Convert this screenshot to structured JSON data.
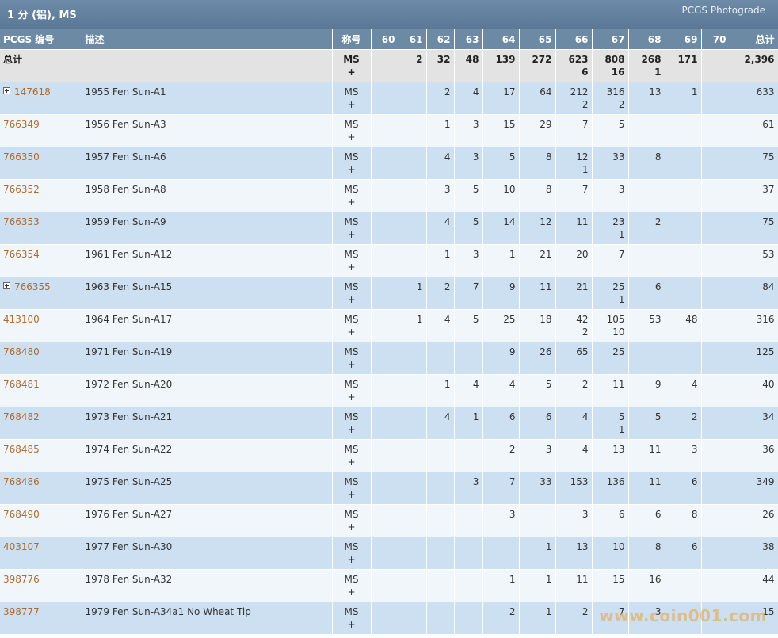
{
  "header": {
    "title": "1 分 (铝), MS",
    "brand": "PCGS Photograde"
  },
  "columns": [
    "PCGS 编号",
    "描述",
    "称号",
    "60",
    "61",
    "62",
    "63",
    "64",
    "65",
    "66",
    "67",
    "68",
    "69",
    "70",
    "总计"
  ],
  "total_row": {
    "label": "总计",
    "desc": "",
    "desig": "MS",
    "desig_sub": "+",
    "grades": [
      [
        "",
        ""
      ],
      [
        "2",
        ""
      ],
      [
        "32",
        ""
      ],
      [
        "48",
        ""
      ],
      [
        "139",
        ""
      ],
      [
        "272",
        ""
      ],
      [
        "623",
        "6"
      ],
      [
        "808",
        "16"
      ],
      [
        "268",
        "1"
      ],
      [
        "171",
        ""
      ],
      [
        "",
        ""
      ]
    ],
    "total": "2,396"
  },
  "rows": [
    {
      "id": "147618",
      "expand": true,
      "desc": "1955 Fen Sun-A1",
      "desig": "MS",
      "desig_sub": "+",
      "grades": [
        [
          "",
          ""
        ],
        [
          "",
          ""
        ],
        [
          "2",
          ""
        ],
        [
          "4",
          ""
        ],
        [
          "17",
          ""
        ],
        [
          "64",
          ""
        ],
        [
          "212",
          "2"
        ],
        [
          "316",
          "2"
        ],
        [
          "13",
          ""
        ],
        [
          "1",
          ""
        ],
        [
          "",
          ""
        ]
      ],
      "total": "633"
    },
    {
      "id": "766349",
      "expand": false,
      "desc": "1956 Fen Sun-A3",
      "desig": "MS",
      "desig_sub": "+",
      "grades": [
        [
          "",
          ""
        ],
        [
          "",
          ""
        ],
        [
          "1",
          ""
        ],
        [
          "3",
          ""
        ],
        [
          "15",
          ""
        ],
        [
          "29",
          ""
        ],
        [
          "7",
          ""
        ],
        [
          "5",
          ""
        ],
        [
          "",
          ""
        ],
        [
          "",
          ""
        ],
        [
          "",
          ""
        ]
      ],
      "total": "61"
    },
    {
      "id": "766350",
      "expand": false,
      "desc": "1957 Fen Sun-A6",
      "desig": "MS",
      "desig_sub": "+",
      "grades": [
        [
          "",
          ""
        ],
        [
          "",
          ""
        ],
        [
          "4",
          ""
        ],
        [
          "3",
          ""
        ],
        [
          "5",
          ""
        ],
        [
          "8",
          ""
        ],
        [
          "12",
          "1"
        ],
        [
          "33",
          ""
        ],
        [
          "8",
          ""
        ],
        [
          "",
          ""
        ],
        [
          "",
          ""
        ]
      ],
      "total": "75"
    },
    {
      "id": "766352",
      "expand": false,
      "desc": "1958 Fen Sun-A8",
      "desig": "MS",
      "desig_sub": "+",
      "grades": [
        [
          "",
          ""
        ],
        [
          "",
          ""
        ],
        [
          "3",
          ""
        ],
        [
          "5",
          ""
        ],
        [
          "10",
          ""
        ],
        [
          "8",
          ""
        ],
        [
          "7",
          ""
        ],
        [
          "3",
          ""
        ],
        [
          "",
          ""
        ],
        [
          "",
          ""
        ],
        [
          "",
          ""
        ]
      ],
      "total": "37"
    },
    {
      "id": "766353",
      "expand": false,
      "desc": "1959 Fen Sun-A9",
      "desig": "MS",
      "desig_sub": "+",
      "grades": [
        [
          "",
          ""
        ],
        [
          "",
          ""
        ],
        [
          "4",
          ""
        ],
        [
          "5",
          ""
        ],
        [
          "14",
          ""
        ],
        [
          "12",
          ""
        ],
        [
          "11",
          ""
        ],
        [
          "23",
          "1"
        ],
        [
          "2",
          ""
        ],
        [
          "",
          ""
        ],
        [
          "",
          ""
        ]
      ],
      "total": "75"
    },
    {
      "id": "766354",
      "expand": false,
      "desc": "1961 Fen Sun-A12",
      "desig": "MS",
      "desig_sub": "+",
      "grades": [
        [
          "",
          ""
        ],
        [
          "",
          ""
        ],
        [
          "1",
          ""
        ],
        [
          "3",
          ""
        ],
        [
          "1",
          ""
        ],
        [
          "21",
          ""
        ],
        [
          "20",
          ""
        ],
        [
          "7",
          ""
        ],
        [
          "",
          ""
        ],
        [
          "",
          ""
        ],
        [
          "",
          ""
        ]
      ],
      "total": "53"
    },
    {
      "id": "766355",
      "expand": true,
      "desc": "1963 Fen Sun-A15",
      "desig": "MS",
      "desig_sub": "+",
      "grades": [
        [
          "",
          ""
        ],
        [
          "1",
          ""
        ],
        [
          "2",
          ""
        ],
        [
          "7",
          ""
        ],
        [
          "9",
          ""
        ],
        [
          "11",
          ""
        ],
        [
          "21",
          ""
        ],
        [
          "25",
          "1"
        ],
        [
          "6",
          ""
        ],
        [
          "",
          ""
        ],
        [
          "",
          ""
        ]
      ],
      "total": "84"
    },
    {
      "id": "413100",
      "expand": false,
      "desc": "1964 Fen Sun-A17",
      "desig": "MS",
      "desig_sub": "+",
      "grades": [
        [
          "",
          ""
        ],
        [
          "1",
          ""
        ],
        [
          "4",
          ""
        ],
        [
          "5",
          ""
        ],
        [
          "25",
          ""
        ],
        [
          "18",
          ""
        ],
        [
          "42",
          "2"
        ],
        [
          "105",
          "10"
        ],
        [
          "53",
          ""
        ],
        [
          "48",
          ""
        ],
        [
          "",
          ""
        ]
      ],
      "total": "316"
    },
    {
      "id": "768480",
      "expand": false,
      "desc": "1971 Fen Sun-A19",
      "desig": "MS",
      "desig_sub": "+",
      "grades": [
        [
          "",
          ""
        ],
        [
          "",
          ""
        ],
        [
          "",
          ""
        ],
        [
          "",
          ""
        ],
        [
          "9",
          ""
        ],
        [
          "26",
          ""
        ],
        [
          "65",
          ""
        ],
        [
          "25",
          ""
        ],
        [
          "",
          ""
        ],
        [
          "",
          ""
        ],
        [
          "",
          ""
        ]
      ],
      "total": "125"
    },
    {
      "id": "768481",
      "expand": false,
      "desc": "1972 Fen Sun-A20",
      "desig": "MS",
      "desig_sub": "+",
      "grades": [
        [
          "",
          ""
        ],
        [
          "",
          ""
        ],
        [
          "1",
          ""
        ],
        [
          "4",
          ""
        ],
        [
          "4",
          ""
        ],
        [
          "5",
          ""
        ],
        [
          "2",
          ""
        ],
        [
          "11",
          ""
        ],
        [
          "9",
          ""
        ],
        [
          "4",
          ""
        ],
        [
          "",
          ""
        ]
      ],
      "total": "40"
    },
    {
      "id": "768482",
      "expand": false,
      "desc": "1973 Fen Sun-A21",
      "desig": "MS",
      "desig_sub": "+",
      "grades": [
        [
          "",
          ""
        ],
        [
          "",
          ""
        ],
        [
          "4",
          ""
        ],
        [
          "1",
          ""
        ],
        [
          "6",
          ""
        ],
        [
          "6",
          ""
        ],
        [
          "4",
          ""
        ],
        [
          "5",
          "1"
        ],
        [
          "5",
          ""
        ],
        [
          "2",
          ""
        ],
        [
          "",
          ""
        ]
      ],
      "total": "34"
    },
    {
      "id": "768485",
      "expand": false,
      "desc": "1974 Fen Sun-A22",
      "desig": "MS",
      "desig_sub": "+",
      "grades": [
        [
          "",
          ""
        ],
        [
          "",
          ""
        ],
        [
          "",
          ""
        ],
        [
          "",
          ""
        ],
        [
          "2",
          ""
        ],
        [
          "3",
          ""
        ],
        [
          "4",
          ""
        ],
        [
          "13",
          ""
        ],
        [
          "11",
          ""
        ],
        [
          "3",
          ""
        ],
        [
          "",
          ""
        ]
      ],
      "total": "36"
    },
    {
      "id": "768486",
      "expand": false,
      "desc": "1975 Fen Sun-A25",
      "desig": "MS",
      "desig_sub": "+",
      "grades": [
        [
          "",
          ""
        ],
        [
          "",
          ""
        ],
        [
          "",
          ""
        ],
        [
          "3",
          ""
        ],
        [
          "7",
          ""
        ],
        [
          "33",
          ""
        ],
        [
          "153",
          ""
        ],
        [
          "136",
          ""
        ],
        [
          "11",
          ""
        ],
        [
          "6",
          ""
        ],
        [
          "",
          ""
        ]
      ],
      "total": "349"
    },
    {
      "id": "768490",
      "expand": false,
      "desc": "1976 Fen Sun-A27",
      "desig": "MS",
      "desig_sub": "+",
      "grades": [
        [
          "",
          ""
        ],
        [
          "",
          ""
        ],
        [
          "",
          ""
        ],
        [
          "",
          ""
        ],
        [
          "3",
          ""
        ],
        [
          "",
          ""
        ],
        [
          "3",
          ""
        ],
        [
          "6",
          ""
        ],
        [
          "6",
          ""
        ],
        [
          "8",
          ""
        ],
        [
          "",
          ""
        ]
      ],
      "total": "26"
    },
    {
      "id": "403107",
      "expand": false,
      "desc": "1977 Fen Sun-A30",
      "desig": "MS",
      "desig_sub": "+",
      "grades": [
        [
          "",
          ""
        ],
        [
          "",
          ""
        ],
        [
          "",
          ""
        ],
        [
          "",
          ""
        ],
        [
          "",
          ""
        ],
        [
          "1",
          ""
        ],
        [
          "13",
          ""
        ],
        [
          "10",
          ""
        ],
        [
          "8",
          ""
        ],
        [
          "6",
          ""
        ],
        [
          "",
          ""
        ]
      ],
      "total": "38"
    },
    {
      "id": "398776",
      "expand": false,
      "desc": "1978 Fen Sun-A32",
      "desig": "MS",
      "desig_sub": "+",
      "grades": [
        [
          "",
          ""
        ],
        [
          "",
          ""
        ],
        [
          "",
          ""
        ],
        [
          "",
          ""
        ],
        [
          "1",
          ""
        ],
        [
          "1",
          ""
        ],
        [
          "11",
          ""
        ],
        [
          "15",
          ""
        ],
        [
          "16",
          ""
        ],
        [
          "",
          ""
        ],
        [
          "",
          ""
        ]
      ],
      "total": "44"
    },
    {
      "id": "398777",
      "expand": false,
      "desc": "1979 Fen Sun-A34a1 No Wheat Tip",
      "desig": "MS",
      "desig_sub": "+",
      "grades": [
        [
          "",
          ""
        ],
        [
          "",
          ""
        ],
        [
          "",
          ""
        ],
        [
          "",
          ""
        ],
        [
          "2",
          ""
        ],
        [
          "1",
          ""
        ],
        [
          "2",
          ""
        ],
        [
          "7",
          ""
        ],
        [
          "3",
          ""
        ],
        [
          "",
          ""
        ],
        [
          "",
          ""
        ]
      ],
      "total": "15"
    }
  ],
  "watermark": "www.coin001.com"
}
